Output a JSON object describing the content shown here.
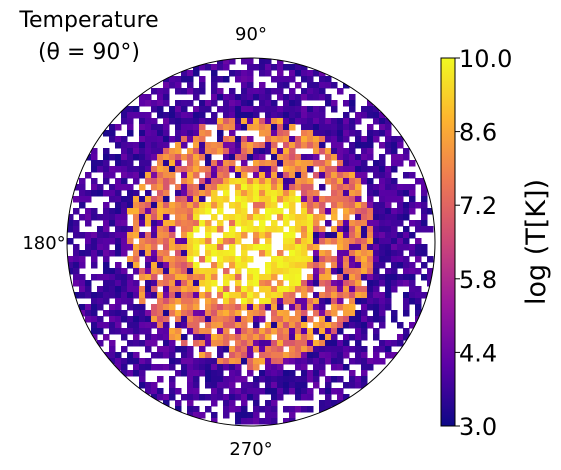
{
  "chart_data": {
    "type": "heatmap",
    "title_line1": "Temperature",
    "title_line2": "(θ = 90°)",
    "projection": "polar",
    "angle_tick_labels": [
      "90°",
      "180°",
      "270°"
    ],
    "colorbar": {
      "label": "log (T[K])",
      "range": [
        3.0,
        10.0
      ],
      "ticks": [
        "3.0",
        "4.4",
        "5.8",
        "7.2",
        "8.6",
        "10.0"
      ],
      "colormap": "plasma",
      "colors": [
        "#0d0887",
        "#5c01a6",
        "#9c179e",
        "#cc4778",
        "#ed7953",
        "#fdb42f",
        "#f0f921"
      ]
    },
    "field_description_values": {
      "outer_region_logT": 3.2,
      "middle_region_logT": 8.0,
      "inner_region_logT": 9.8
    },
    "grid": false,
    "legend": "none"
  }
}
